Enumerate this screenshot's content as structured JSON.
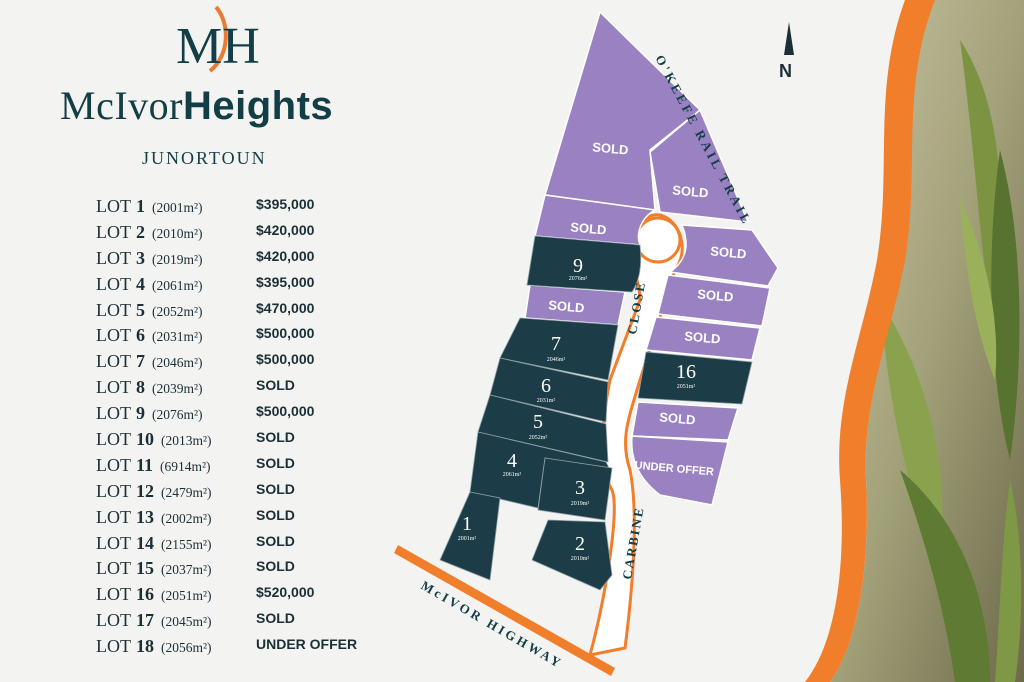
{
  "brand": {
    "monogram": "MH",
    "name_light": "McIvor",
    "name_bold": "Heights",
    "location": "JUNORTOUN"
  },
  "lot_word": "LOT",
  "lots": [
    {
      "num": "1",
      "area": "(2001m²)",
      "status": "$395,000"
    },
    {
      "num": "2",
      "area": "(2010m²)",
      "status": "$420,000"
    },
    {
      "num": "3",
      "area": "(2019m²)",
      "status": "$420,000"
    },
    {
      "num": "4",
      "area": "(2061m²)",
      "status": "$395,000"
    },
    {
      "num": "5",
      "area": "(2052m²)",
      "status": "$470,000"
    },
    {
      "num": "6",
      "area": "(2031m²)",
      "status": "$500,000"
    },
    {
      "num": "7",
      "area": "(2046m²)",
      "status": "$500,000"
    },
    {
      "num": "8",
      "area": "(2039m²)",
      "status": "SOLD"
    },
    {
      "num": "9",
      "area": "(2076m²)",
      "status": "$500,000"
    },
    {
      "num": "10",
      "area": "(2013m²)",
      "status": "SOLD"
    },
    {
      "num": "11",
      "area": "(6914m²)",
      "status": "SOLD"
    },
    {
      "num": "12",
      "area": "(2479m²)",
      "status": "SOLD"
    },
    {
      "num": "13",
      "area": "(2002m²)",
      "status": "SOLD"
    },
    {
      "num": "14",
      "area": "(2155m²)",
      "status": "SOLD"
    },
    {
      "num": "15",
      "area": "(2037m²)",
      "status": "SOLD"
    },
    {
      "num": "16",
      "area": "(2051m²)",
      "status": "$520,000"
    },
    {
      "num": "17",
      "area": "(2045m²)",
      "status": "SOLD"
    },
    {
      "num": "18",
      "area": "(2056m²)",
      "status": "UNDER OFFER"
    }
  ],
  "map": {
    "north": "N",
    "roads": {
      "trail": "O'KEEFE RAIL TRAIL",
      "close": "CLOSE",
      "carbine": "CARBINE",
      "highway": "McIVOR HIGHWAY"
    },
    "sold_label": "SOLD",
    "under_offer_label": "UNDER OFFER",
    "available_lots": [
      {
        "num": "9",
        "area": "2076m²"
      },
      {
        "num": "7",
        "area": "2046m²"
      },
      {
        "num": "6",
        "area": "2031m²"
      },
      {
        "num": "5",
        "area": "2052m²"
      },
      {
        "num": "4",
        "area": "2061m²"
      },
      {
        "num": "3",
        "area": "2019m²"
      },
      {
        "num": "1",
        "area": "2001m²"
      },
      {
        "num": "2",
        "area": "2010m²"
      },
      {
        "num": "16",
        "area": "2051m²"
      }
    ]
  },
  "colors": {
    "navy": "#133e46",
    "available": "#1c3d47",
    "sold": "#9a82c2",
    "road": "#f07e2b",
    "leaf": "#6f8a3e"
  }
}
